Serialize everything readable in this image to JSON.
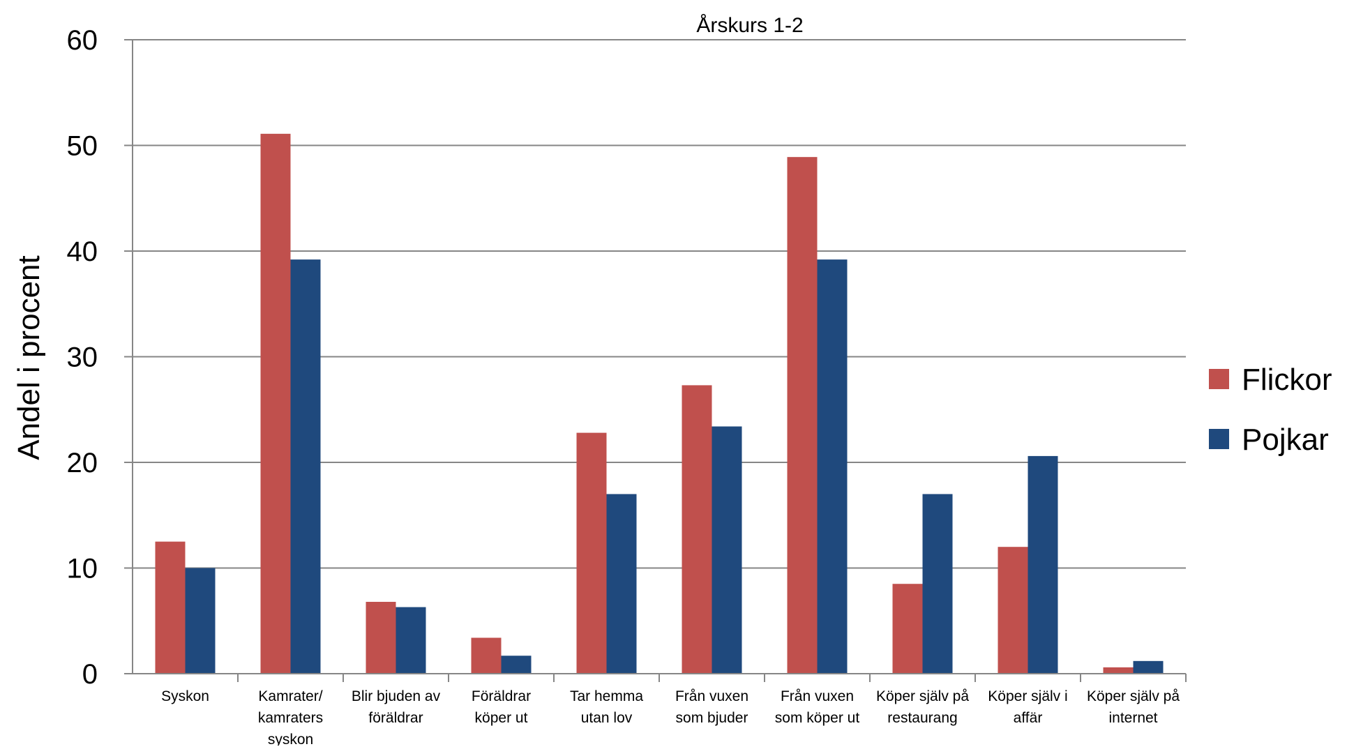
{
  "chart_data": {
    "type": "bar",
    "title": "",
    "subtitle": "Årskurs 1-2",
    "xlabel": "",
    "ylabel": "Andel i procent",
    "ylim": [
      0,
      60
    ],
    "yticks": [
      0,
      10,
      20,
      30,
      40,
      50,
      60
    ],
    "grid": true,
    "legend_position": "right",
    "categories": [
      "Syskon",
      "Kamrater/ kamraters syskon",
      "Blir bjuden av föräldrar",
      "Föräldrar köper ut",
      "Tar hemma utan lov",
      "Från vuxen som bjuder",
      "Från vuxen som köper ut",
      "Köper själv på restaurang",
      "Köper själv i affär",
      "Köper själv på internet"
    ],
    "category_lines": [
      [
        "Syskon"
      ],
      [
        "Kamrater/",
        "kamraters",
        "syskon"
      ],
      [
        "Blir bjuden av",
        "föräldrar"
      ],
      [
        "Föräldrar",
        "köper ut"
      ],
      [
        "Tar hemma",
        "utan lov"
      ],
      [
        "Från vuxen",
        "som bjuder"
      ],
      [
        "Från vuxen",
        "som köper ut"
      ],
      [
        "Köper själv på",
        "restaurang"
      ],
      [
        "Köper själv i",
        "affär"
      ],
      [
        "Köper själv på",
        "internet"
      ]
    ],
    "series": [
      {
        "name": "Flickor",
        "color": "#C0504D",
        "values": [
          12.5,
          51.1,
          6.8,
          3.4,
          22.8,
          27.3,
          48.9,
          8.5,
          12.0,
          0.6
        ]
      },
      {
        "name": "Pojkar",
        "color": "#1F497D",
        "values": [
          10.0,
          39.2,
          6.3,
          1.7,
          17.0,
          23.4,
          39.2,
          17.0,
          20.6,
          1.2
        ]
      }
    ]
  }
}
